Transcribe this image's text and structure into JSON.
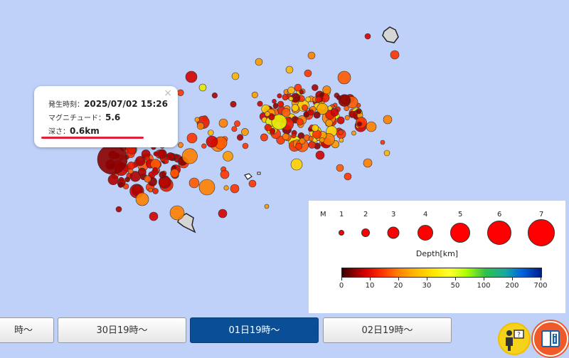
{
  "popup": {
    "time_label": "発生時刻：",
    "time_value": "2025/07/02 15:26",
    "magnitude_label": "マグニチュード：",
    "magnitude_value": "5.6",
    "depth_label": "深さ：",
    "depth_value": "0.6km",
    "close_symbol": "×"
  },
  "legend": {
    "m_label": "M",
    "magnitudes": [
      "1",
      "2",
      "3",
      "4",
      "5",
      "6",
      "7"
    ],
    "depth_title": "Depth[km]",
    "depth_ticks": [
      "0",
      "10",
      "20",
      "30",
      "50",
      "100",
      "200",
      "700"
    ]
  },
  "tabs": [
    {
      "label": "時〜",
      "active": false
    },
    {
      "label": "30日19時〜",
      "active": false
    },
    {
      "label": "01日19時〜",
      "active": true
    },
    {
      "label": "02日19時〜",
      "active": false
    }
  ],
  "buttons": {
    "help": "help-icon",
    "legend": "info-book-icon"
  },
  "colors": {
    "sea": "#bfd1f9",
    "active_tab": "#0a4f96",
    "highlight": "#e0203a",
    "legend_button_ring": "#f05a28",
    "help_button": "#f7d21b"
  }
}
